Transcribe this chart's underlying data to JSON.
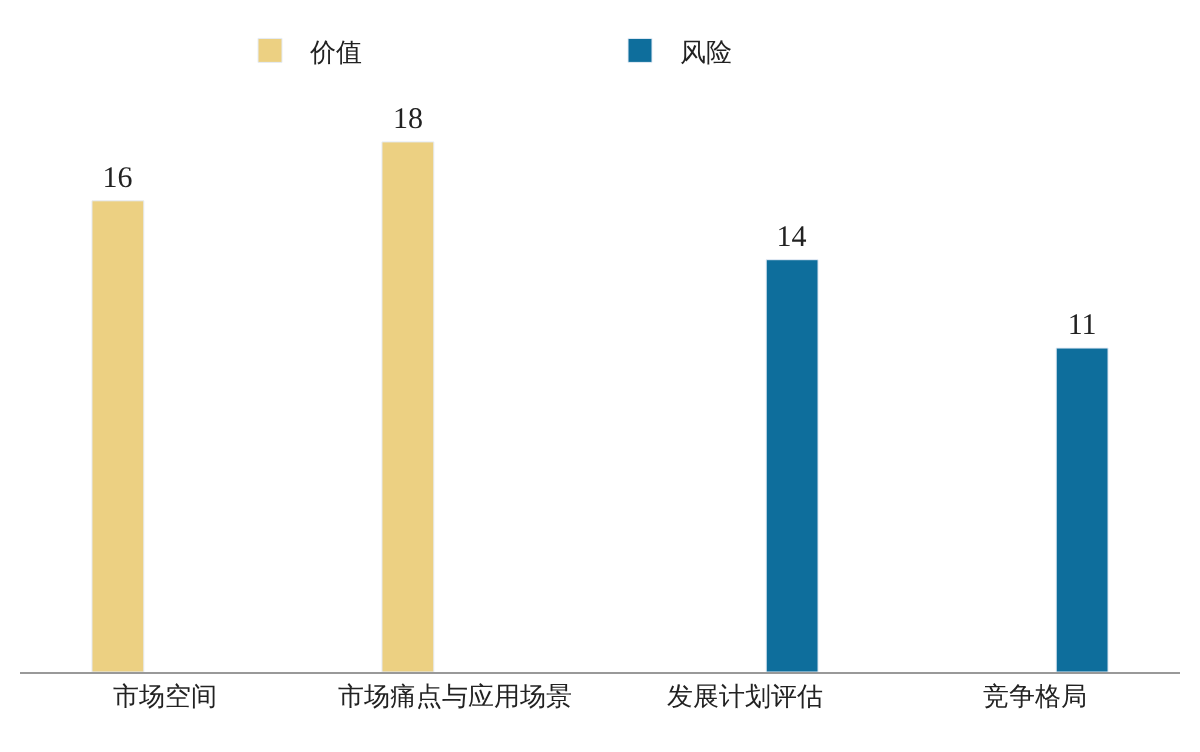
{
  "chart_data": {
    "type": "bar",
    "categories": [
      "市场空间",
      "市场痛点与应用场景",
      "发展计划评估",
      "竞争格局"
    ],
    "series": [
      {
        "name": "价值",
        "color": "#ecd082",
        "values": [
          16,
          18,
          null,
          null
        ]
      },
      {
        "name": "风险",
        "color": "#0e6e9c",
        "values": [
          null,
          null,
          14,
          11
        ]
      }
    ],
    "data_labels": true,
    "legend": "top"
  }
}
